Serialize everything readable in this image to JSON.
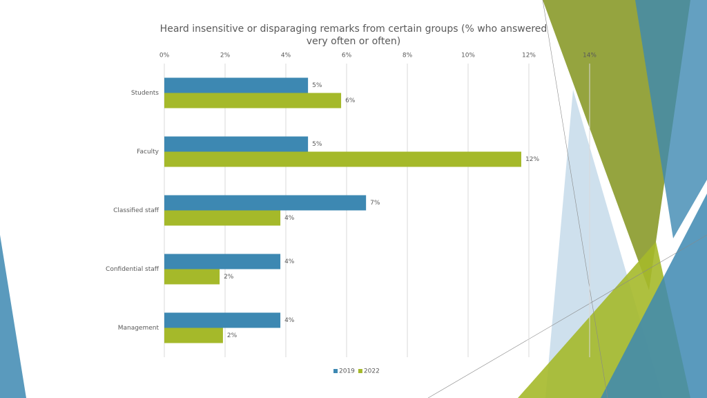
{
  "chart_data": {
    "type": "hbar",
    "title": "Heard insensitive or disparaging remarks from certain groups (% who answered very often or often)",
    "categories": [
      "Students",
      "Faculty",
      "Classified staff",
      "Confidential staff",
      "Management"
    ],
    "series": [
      {
        "name": "2019",
        "color": "#3d88b2",
        "values": [
          4.73,
          4.73,
          6.64,
          3.82,
          3.82
        ],
        "value_labels": [
          "5%",
          "5%",
          "7%",
          "4%",
          "4%"
        ]
      },
      {
        "name": "2022",
        "color": "#a5b92a",
        "values": [
          5.82,
          11.75,
          3.82,
          1.82,
          1.93
        ],
        "value_labels": [
          "6%",
          "12%",
          "4%",
          "2%",
          "2%"
        ]
      }
    ],
    "xlim": [
      0,
      14
    ],
    "xticks": [
      {
        "value": 0,
        "label": "0%"
      },
      {
        "value": 2,
        "label": "2%"
      },
      {
        "value": 4,
        "label": "4%"
      },
      {
        "value": 6,
        "label": "6%"
      },
      {
        "value": 8,
        "label": "8%"
      },
      {
        "value": 10,
        "label": "10%"
      },
      {
        "value": 12,
        "label": "12%"
      },
      {
        "value": 14,
        "label": "14%"
      }
    ],
    "grid": true,
    "legend": "bottom"
  }
}
